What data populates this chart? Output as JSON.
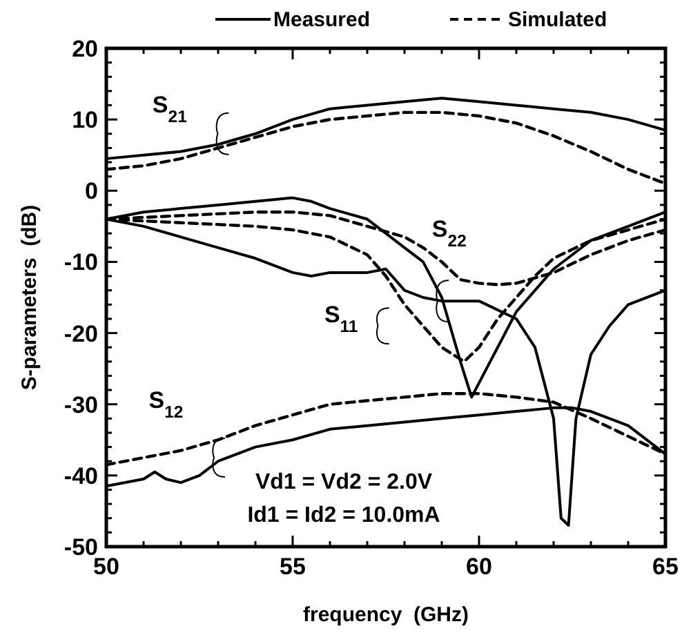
{
  "chart_data": {
    "type": "line",
    "xlabel": "frequency  (GHz)",
    "ylabel": "S-parameters  (dB)",
    "xlim": [
      50,
      65
    ],
    "xticks": [
      50,
      55,
      60,
      65
    ],
    "ylim": [
      -50,
      20
    ],
    "yticks": [
      -50,
      -40,
      -30,
      -20,
      -10,
      0,
      10,
      20
    ],
    "grid": false,
    "legend": "top right",
    "marker": "none",
    "series": [
      {
        "name": "Measured",
        "color": "#000000",
        "line_style": "solid",
        "x": [
          50,
          51,
          52,
          53,
          54,
          55,
          56,
          57,
          58,
          59,
          60,
          61,
          62,
          63,
          64,
          65
        ],
        "values": [
          4.5,
          5,
          5.5,
          6.5,
          8,
          10,
          11.5,
          12,
          12.5,
          13,
          12.5,
          12,
          11.5,
          11,
          10,
          8.5
        ]
      },
      {
        "name": "Simulated",
        "color": "#000000",
        "line_style": "dashed",
        "x": [
          50,
          51,
          52,
          53,
          54,
          55,
          56,
          57,
          58,
          59,
          60,
          61,
          62,
          63,
          64,
          65
        ],
        "values": [
          3,
          3.5,
          4.5,
          6,
          7.5,
          9,
          10,
          10.5,
          11,
          11,
          10.5,
          9.5,
          7.7,
          5.5,
          3,
          1
        ]
      },
      {
        "color": "#000000",
        "line_style": "solid",
        "x": [
          50,
          51,
          52,
          53,
          54,
          55,
          55.5,
          56,
          57,
          57.5,
          58,
          58.5,
          59,
          59.5,
          59.8,
          60.2,
          61,
          62,
          63,
          64,
          65
        ],
        "values": [
          -4,
          -3,
          -2.5,
          -2,
          -1.5,
          -1,
          -1.5,
          -2.5,
          -4,
          -6,
          -8,
          -10,
          -15,
          -24,
          -29,
          -25,
          -17,
          -11,
          -7,
          -5,
          -3
        ]
      },
      {
        "color": "#000000",
        "line_style": "solid",
        "x": [
          50,
          51,
          52,
          53,
          54,
          55,
          55.5,
          56,
          57,
          57.5,
          58,
          58.5,
          59,
          60,
          61,
          61.5,
          62,
          62.2,
          62.4,
          62.6,
          63,
          63.5,
          64,
          65
        ],
        "values": [
          -4,
          -5,
          -6.5,
          -8,
          -9.5,
          -11.5,
          -12,
          -11.5,
          -11.5,
          -11,
          -14,
          -15,
          -15.5,
          -15.5,
          -18,
          -22,
          -32,
          -46,
          -47,
          -32,
          -23,
          -19,
          -16,
          -14
        ]
      },
      {
        "color": "#000000",
        "line_style": "dashed",
        "x": [
          50,
          52,
          54,
          55,
          56,
          57,
          58,
          58.5,
          59,
          59.5,
          60,
          60.5,
          61,
          62,
          63,
          64,
          65
        ],
        "values": [
          -4,
          -3.5,
          -3,
          -3,
          -3.5,
          -5,
          -6.5,
          -8,
          -10,
          -12.5,
          -13,
          -13.2,
          -13,
          -11.5,
          -9,
          -7,
          -5.5
        ]
      },
      {
        "color": "#000000",
        "line_style": "dashed",
        "x": [
          50,
          52,
          54,
          55,
          56,
          57,
          57.5,
          58,
          58.5,
          59,
          59.6,
          60,
          60.5,
          61,
          61.5,
          62,
          63,
          64,
          65
        ],
        "values": [
          -4,
          -4.5,
          -5,
          -5.5,
          -6.5,
          -9,
          -12,
          -16,
          -19,
          -22,
          -24,
          -22,
          -18,
          -15,
          -12,
          -9.5,
          -7,
          -5.5,
          -4
        ]
      },
      {
        "color": "#000000",
        "line_style": "solid",
        "x": [
          50,
          51,
          51.3,
          51.6,
          52,
          52.5,
          53,
          54,
          55,
          56,
          57,
          58,
          59,
          60,
          61,
          62,
          62.5,
          63,
          64,
          65
        ],
        "values": [
          -41.5,
          -40.5,
          -39.5,
          -40.5,
          -41,
          -40,
          -38,
          -36,
          -35,
          -33.5,
          -33,
          -32.5,
          -32,
          -31.5,
          -31,
          -30.5,
          -30.5,
          -31,
          -33,
          -37
        ]
      },
      {
        "color": "#000000",
        "line_style": "dashed",
        "x": [
          50,
          51,
          52,
          53,
          54,
          55,
          56,
          57,
          58,
          59,
          60,
          61,
          62,
          63,
          64,
          65
        ],
        "values": [
          -38.5,
          -37.5,
          -36.5,
          -35,
          -33,
          -31.5,
          -30,
          -29.5,
          -29,
          -28.5,
          -28.5,
          -29,
          -29.7,
          -32,
          -34.5,
          -37
        ]
      }
    ],
    "annotations": [
      "S$_{21}$",
      "S$_{22}$",
      "S$_{11}$",
      "S$_{12}$",
      "Vd1 = Vd2 = 2.0V",
      "Id1 = Id2 = 10.0mA"
    ]
  }
}
